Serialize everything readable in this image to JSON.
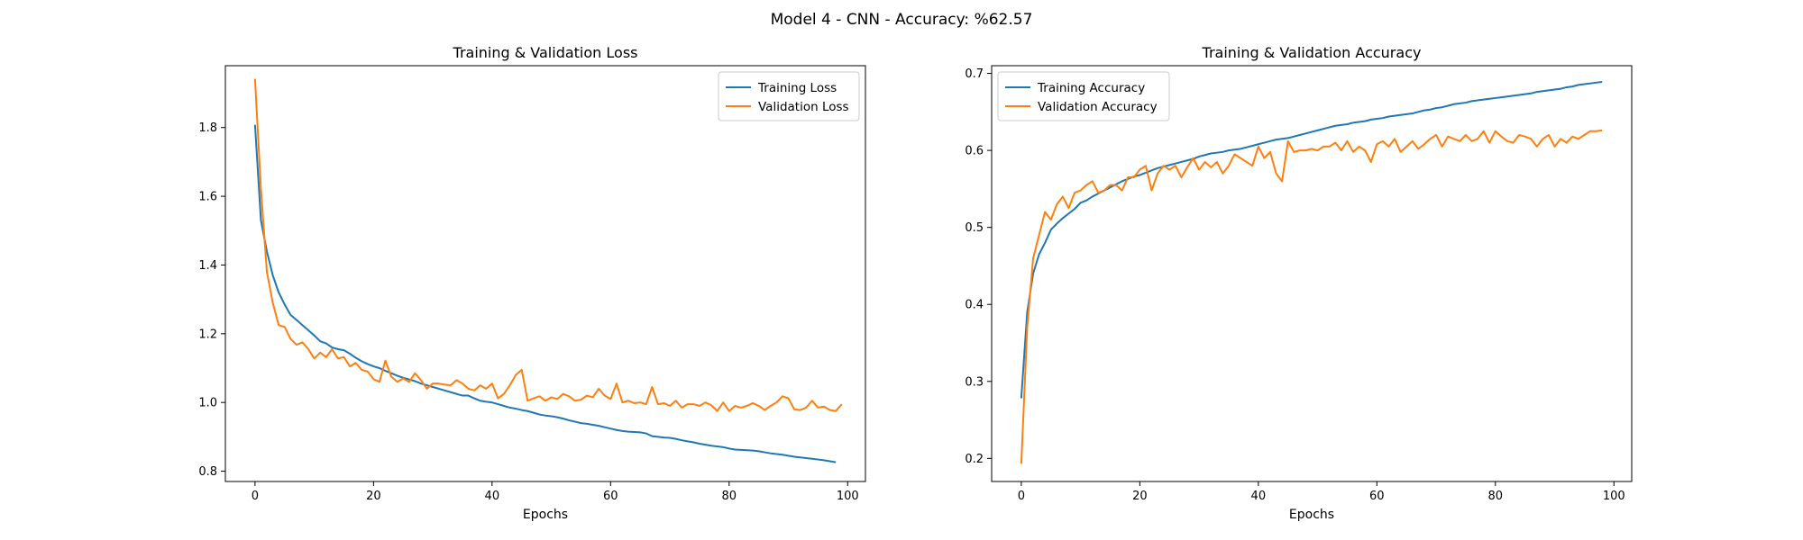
{
  "figure": {
    "suptitle": "Model 4 - CNN - Accuracy: %62.57"
  },
  "chart_data": [
    {
      "type": "line",
      "title": "Training & Validation Loss",
      "xlabel": "Epochs",
      "ylabel": "",
      "xlim": [
        -5,
        103
      ],
      "ylim": [
        0.77,
        1.98
      ],
      "xticks": [
        0,
        20,
        40,
        60,
        80,
        100
      ],
      "yticks": [
        0.8,
        1.0,
        1.2,
        1.4,
        1.6,
        1.8
      ],
      "grid": false,
      "legend": "upper right",
      "series": [
        {
          "name": "Training Loss",
          "color": "#1f77b4",
          "values": [
            1.808,
            1.53,
            1.44,
            1.37,
            1.32,
            1.285,
            1.255,
            1.24,
            1.225,
            1.21,
            1.195,
            1.178,
            1.172,
            1.16,
            1.155,
            1.152,
            1.142,
            1.13,
            1.12,
            1.112,
            1.105,
            1.1,
            1.092,
            1.085,
            1.078,
            1.072,
            1.067,
            1.062,
            1.055,
            1.05,
            1.045,
            1.04,
            1.035,
            1.03,
            1.025,
            1.02,
            1.02,
            1.012,
            1.005,
            1.002,
            1.0,
            0.995,
            0.99,
            0.985,
            0.982,
            0.978,
            0.975,
            0.97,
            0.965,
            0.962,
            0.96,
            0.957,
            0.953,
            0.948,
            0.944,
            0.94,
            0.938,
            0.935,
            0.932,
            0.928,
            0.924,
            0.92,
            0.917,
            0.915,
            0.914,
            0.913,
            0.91,
            0.902,
            0.9,
            0.898,
            0.897,
            0.894,
            0.89,
            0.887,
            0.884,
            0.88,
            0.877,
            0.874,
            0.872,
            0.87,
            0.866,
            0.863,
            0.862,
            0.861,
            0.86,
            0.858,
            0.855,
            0.852,
            0.85,
            0.848,
            0.845,
            0.842,
            0.84,
            0.838,
            0.836,
            0.834,
            0.832,
            0.829,
            0.826
          ]
        },
        {
          "name": "Validation Loss",
          "color": "#ff7f0e",
          "values": [
            1.942,
            1.62,
            1.38,
            1.29,
            1.225,
            1.22,
            1.185,
            1.168,
            1.175,
            1.155,
            1.128,
            1.145,
            1.132,
            1.155,
            1.128,
            1.132,
            1.105,
            1.115,
            1.095,
            1.09,
            1.068,
            1.06,
            1.122,
            1.075,
            1.06,
            1.07,
            1.06,
            1.085,
            1.065,
            1.04,
            1.055,
            1.055,
            1.052,
            1.05,
            1.065,
            1.055,
            1.04,
            1.035,
            1.05,
            1.04,
            1.055,
            1.012,
            1.025,
            1.05,
            1.08,
            1.095,
            1.005,
            1.012,
            1.018,
            1.005,
            1.015,
            1.01,
            1.025,
            1.018,
            1.005,
            1.008,
            1.02,
            1.015,
            1.04,
            1.02,
            1.01,
            1.055,
            1.0,
            1.005,
            0.998,
            1.0,
            0.995,
            1.045,
            0.995,
            0.998,
            0.99,
            1.005,
            0.985,
            0.995,
            0.995,
            0.99,
            1.0,
            0.992,
            0.975,
            1.0,
            0.975,
            0.99,
            0.985,
            0.99,
            0.998,
            0.99,
            0.978,
            0.99,
            1.0,
            1.018,
            1.012,
            0.98,
            0.978,
            0.985,
            1.005,
            0.985,
            0.988,
            0.978,
            0.975,
            0.995
          ]
        }
      ]
    },
    {
      "type": "line",
      "title": "Training & Validation Accuracy",
      "xlabel": "Epochs",
      "ylabel": "",
      "xlim": [
        -5,
        103
      ],
      "ylim": [
        0.17,
        0.71
      ],
      "xticks": [
        0,
        20,
        40,
        60,
        80,
        100
      ],
      "yticks": [
        0.2,
        0.3,
        0.4,
        0.5,
        0.6,
        0.7
      ],
      "grid": false,
      "legend": "upper left",
      "series": [
        {
          "name": "Training Accuracy",
          "color": "#1f77b4",
          "values": [
            0.278,
            0.39,
            0.44,
            0.465,
            0.48,
            0.497,
            0.505,
            0.512,
            0.518,
            0.524,
            0.532,
            0.535,
            0.54,
            0.544,
            0.548,
            0.552,
            0.556,
            0.56,
            0.563,
            0.566,
            0.568,
            0.571,
            0.574,
            0.577,
            0.579,
            0.581,
            0.583,
            0.585,
            0.587,
            0.589,
            0.592,
            0.594,
            0.596,
            0.597,
            0.598,
            0.6,
            0.601,
            0.602,
            0.604,
            0.606,
            0.608,
            0.61,
            0.612,
            0.614,
            0.615,
            0.616,
            0.618,
            0.62,
            0.622,
            0.624,
            0.626,
            0.628,
            0.63,
            0.632,
            0.633,
            0.634,
            0.636,
            0.637,
            0.638,
            0.64,
            0.641,
            0.642,
            0.644,
            0.645,
            0.646,
            0.647,
            0.648,
            0.65,
            0.652,
            0.653,
            0.655,
            0.656,
            0.658,
            0.66,
            0.661,
            0.662,
            0.664,
            0.665,
            0.666,
            0.667,
            0.668,
            0.669,
            0.67,
            0.671,
            0.672,
            0.673,
            0.674,
            0.676,
            0.677,
            0.678,
            0.679,
            0.68,
            0.682,
            0.683,
            0.685,
            0.686,
            0.687,
            0.688,
            0.689
          ]
        },
        {
          "name": "Validation Accuracy",
          "color": "#ff7f0e",
          "values": [
            0.193,
            0.37,
            0.46,
            0.49,
            0.52,
            0.51,
            0.53,
            0.54,
            0.525,
            0.545,
            0.548,
            0.555,
            0.56,
            0.545,
            0.548,
            0.555,
            0.555,
            0.548,
            0.565,
            0.565,
            0.575,
            0.58,
            0.548,
            0.57,
            0.58,
            0.575,
            0.58,
            0.565,
            0.578,
            0.59,
            0.575,
            0.585,
            0.578,
            0.585,
            0.57,
            0.58,
            0.595,
            0.59,
            0.585,
            0.58,
            0.605,
            0.59,
            0.598,
            0.57,
            0.56,
            0.612,
            0.598,
            0.6,
            0.6,
            0.602,
            0.6,
            0.605,
            0.605,
            0.61,
            0.6,
            0.612,
            0.598,
            0.605,
            0.6,
            0.585,
            0.608,
            0.612,
            0.605,
            0.615,
            0.598,
            0.605,
            0.612,
            0.602,
            0.608,
            0.615,
            0.62,
            0.605,
            0.618,
            0.615,
            0.612,
            0.62,
            0.612,
            0.615,
            0.625,
            0.61,
            0.625,
            0.618,
            0.612,
            0.61,
            0.62,
            0.618,
            0.615,
            0.605,
            0.615,
            0.62,
            0.605,
            0.615,
            0.61,
            0.618,
            0.615,
            0.62,
            0.625,
            0.625,
            0.626
          ]
        }
      ]
    }
  ]
}
